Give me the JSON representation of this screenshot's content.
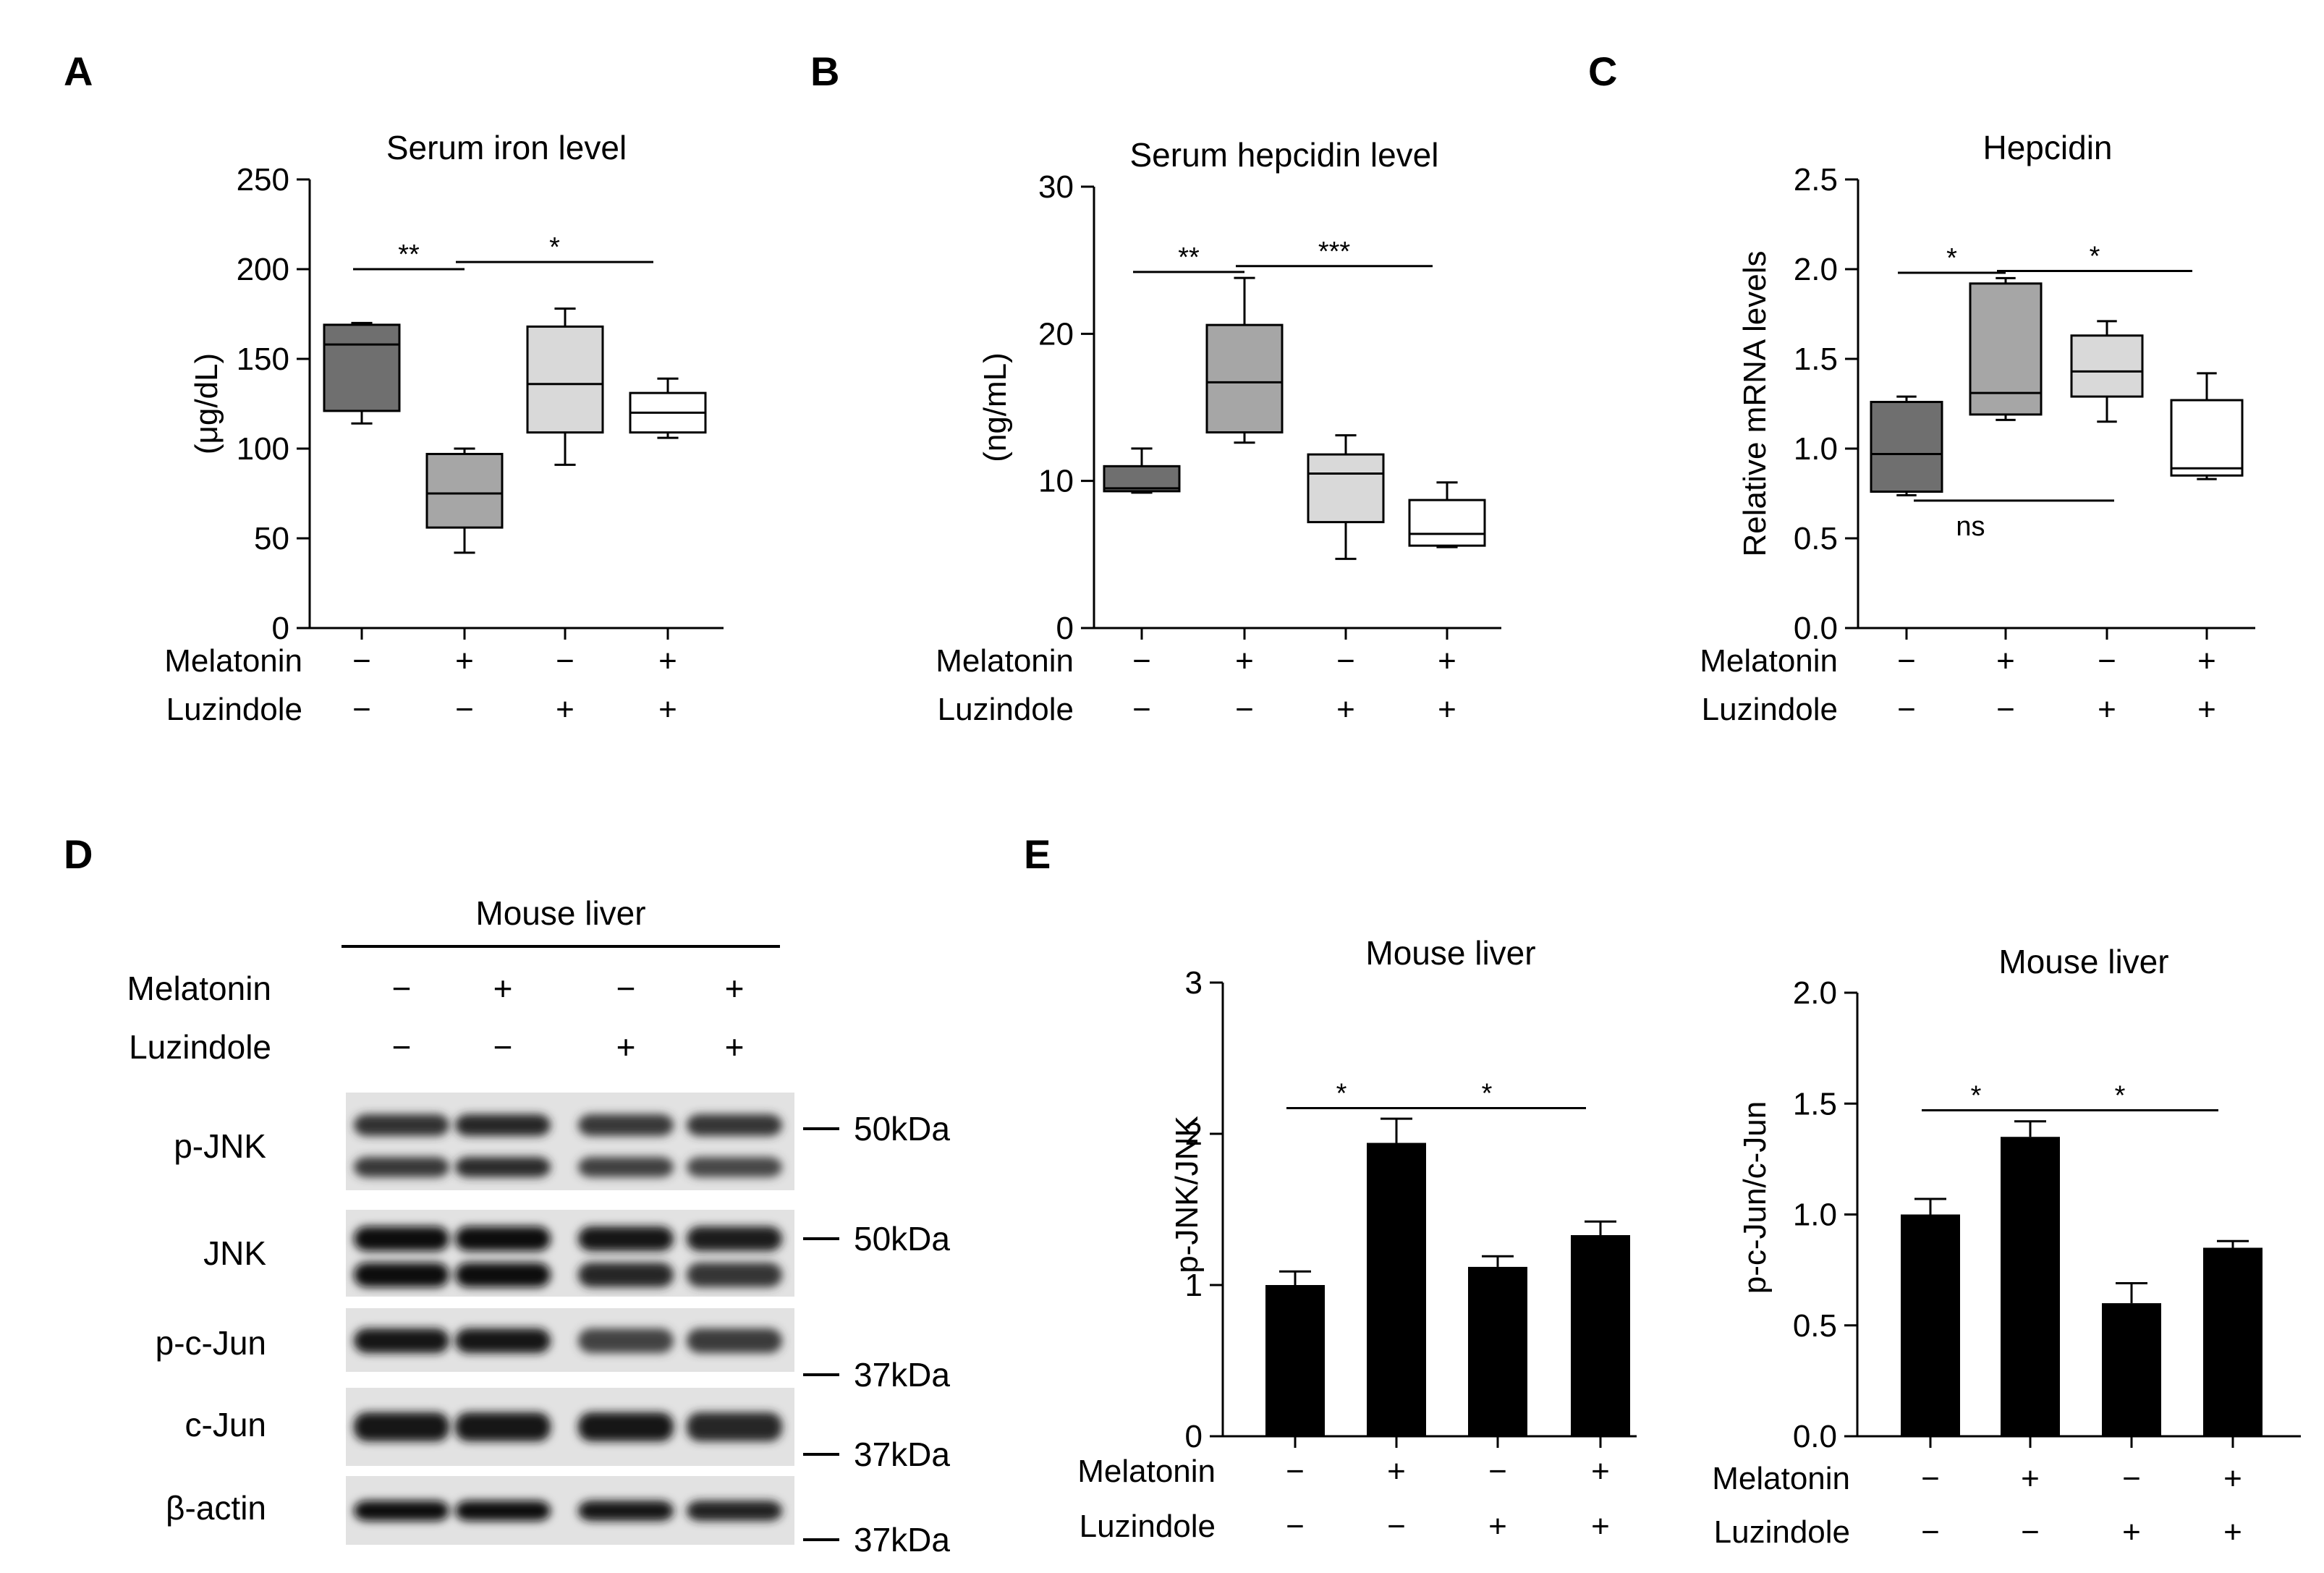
{
  "chart_data": [
    {
      "panel": "A",
      "type": "box",
      "title": "Serum iron level",
      "ylabel": "(μg/dL)",
      "ylim": [
        0,
        250
      ],
      "yticks": [
        0,
        50,
        100,
        150,
        200,
        250
      ],
      "factors": [
        {
          "name": "Melatonin",
          "levels": [
            "−",
            "+",
            "−",
            "+"
          ]
        },
        {
          "name": "Luzindole",
          "levels": [
            "−",
            "−",
            "+",
            "+"
          ]
        }
      ],
      "boxes": [
        {
          "min": 114,
          "q1": 121,
          "median": 158,
          "q3": 169,
          "max": 170,
          "color": "#6f6f6f"
        },
        {
          "min": 42,
          "q1": 56,
          "median": 75,
          "q3": 97,
          "max": 100,
          "color": "#a6a6a6"
        },
        {
          "min": 91,
          "q1": 109,
          "median": 136,
          "q3": 168,
          "max": 178,
          "color": "#d9d9d9"
        },
        {
          "min": 106,
          "q1": 109,
          "median": 120,
          "q3": 131,
          "max": 139,
          "color": "#ffffff"
        }
      ],
      "significance": [
        {
          "from": 0,
          "to": 1,
          "label": "**",
          "y": 200
        },
        {
          "from": 1,
          "to": 3,
          "label": "*",
          "y": 204
        }
      ]
    },
    {
      "panel": "B",
      "type": "box",
      "title": "Serum hepcidin level",
      "ylabel": "(ng/mL)",
      "ylim": [
        0,
        30
      ],
      "yticks": [
        0,
        10,
        20,
        30
      ],
      "factors": [
        {
          "name": "Melatonin",
          "levels": [
            "−",
            "+",
            "−",
            "+"
          ]
        },
        {
          "name": "Luzindole",
          "levels": [
            "−",
            "−",
            "+",
            "+"
          ]
        }
      ],
      "boxes": [
        {
          "min": 9.2,
          "q1": 9.3,
          "median": 9.5,
          "q3": 11.0,
          "max": 12.2,
          "color": "#6f6f6f"
        },
        {
          "min": 12.6,
          "q1": 13.3,
          "median": 16.7,
          "q3": 20.6,
          "max": 23.8,
          "color": "#a6a6a6"
        },
        {
          "min": 4.7,
          "q1": 7.2,
          "median": 10.5,
          "q3": 11.8,
          "max": 13.1,
          "color": "#d9d9d9"
        },
        {
          "min": 5.5,
          "q1": 5.6,
          "median": 6.4,
          "q3": 8.7,
          "max": 9.9,
          "color": "#ffffff"
        }
      ],
      "significance": [
        {
          "from": 0,
          "to": 1,
          "label": "**",
          "y": 24.2
        },
        {
          "from": 1,
          "to": 3,
          "label": "***",
          "y": 24.6
        }
      ]
    },
    {
      "panel": "C",
      "type": "box",
      "title": "Hepcidin",
      "ylabel": "Relative mRNA levels",
      "ylim": [
        0,
        2.5
      ],
      "yticks": [
        "0.0",
        "0.5",
        "1.0",
        "1.5",
        "2.0",
        "2.5"
      ],
      "factors": [
        {
          "name": "Melatonin",
          "levels": [
            "−",
            "+",
            "−",
            "+"
          ]
        },
        {
          "name": "Luzindole",
          "levels": [
            "−",
            "−",
            "+",
            "+"
          ]
        }
      ],
      "boxes": [
        {
          "min": 0.74,
          "q1": 0.76,
          "median": 0.97,
          "q3": 1.26,
          "max": 1.29,
          "color": "#6f6f6f"
        },
        {
          "min": 1.16,
          "q1": 1.19,
          "median": 1.31,
          "q3": 1.92,
          "max": 1.95,
          "color": "#a6a6a6"
        },
        {
          "min": 1.15,
          "q1": 1.29,
          "median": 1.43,
          "q3": 1.63,
          "max": 1.71,
          "color": "#d9d9d9"
        },
        {
          "min": 0.83,
          "q1": 0.85,
          "median": 0.89,
          "q3": 1.27,
          "max": 1.42,
          "color": "#ffffff"
        }
      ],
      "significance": [
        {
          "from": 0,
          "to": 1,
          "label": "*",
          "y": 1.98
        },
        {
          "from": 1,
          "to": 3,
          "label": "*",
          "y": 1.99
        }
      ],
      "ns_bar": {
        "from": 0,
        "to": 2,
        "label": "ns",
        "y": 0.71
      }
    },
    {
      "panel": "E-left",
      "type": "bar",
      "title": "Mouse liver",
      "ylabel": "p-JNK/JNK",
      "ylim": [
        0,
        3
      ],
      "yticks": [
        "0",
        "1",
        "2",
        "3"
      ],
      "factors": [
        {
          "name": "Melatonin",
          "levels": [
            "−",
            "+",
            "−",
            "+"
          ]
        },
        {
          "name": "Luzindole",
          "levels": [
            "−",
            "−",
            "+",
            "+"
          ]
        }
      ],
      "values": [
        1.0,
        1.94,
        1.12,
        1.33
      ],
      "errors": [
        0.09,
        0.16,
        0.07,
        0.09
      ],
      "significance": [
        {
          "from": 0,
          "to": 1,
          "label": "*",
          "y": 2.17
        },
        {
          "from": 1,
          "to": 3,
          "label": "*",
          "y": 2.17
        }
      ]
    },
    {
      "panel": "E-right",
      "type": "bar",
      "title": "Mouse liver",
      "ylabel": "p-c-Jun/c-Jun",
      "ylim": [
        0,
        2.0
      ],
      "yticks": [
        "0.0",
        "0.5",
        "1.0",
        "1.5",
        "2.0"
      ],
      "factors": [
        {
          "name": "Melatonin",
          "levels": [
            "−",
            "+",
            "−",
            "+"
          ]
        },
        {
          "name": "Luzindole",
          "levels": [
            "−",
            "−",
            "+",
            "+"
          ]
        }
      ],
      "values": [
        1.0,
        1.35,
        0.6,
        0.85
      ],
      "errors": [
        0.07,
        0.07,
        0.09,
        0.03
      ],
      "significance": [
        {
          "from": 0,
          "to": 1,
          "label": "*",
          "y": 1.47
        },
        {
          "from": 1,
          "to": 3,
          "label": "*",
          "y": 1.47
        }
      ]
    }
  ],
  "blot": {
    "panel": "D",
    "title": "Mouse liver",
    "factors": [
      {
        "name": "Melatonin",
        "levels": [
          "−",
          "+",
          "−",
          "+"
        ]
      },
      {
        "name": "Luzindole",
        "levels": [
          "−",
          "−",
          "+",
          "+"
        ]
      }
    ],
    "rows": [
      {
        "label": "p-JNK",
        "marker": "50kDa"
      },
      {
        "label": "JNK",
        "marker": "50kDa"
      },
      {
        "label": "p-c-Jun",
        "marker": "37kDa"
      },
      {
        "label": "c-Jun",
        "marker": "37kDa"
      },
      {
        "label": "β-actin",
        "marker": "37kDa"
      }
    ]
  },
  "panel_letters": [
    "A",
    "B",
    "C",
    "D",
    "E"
  ]
}
